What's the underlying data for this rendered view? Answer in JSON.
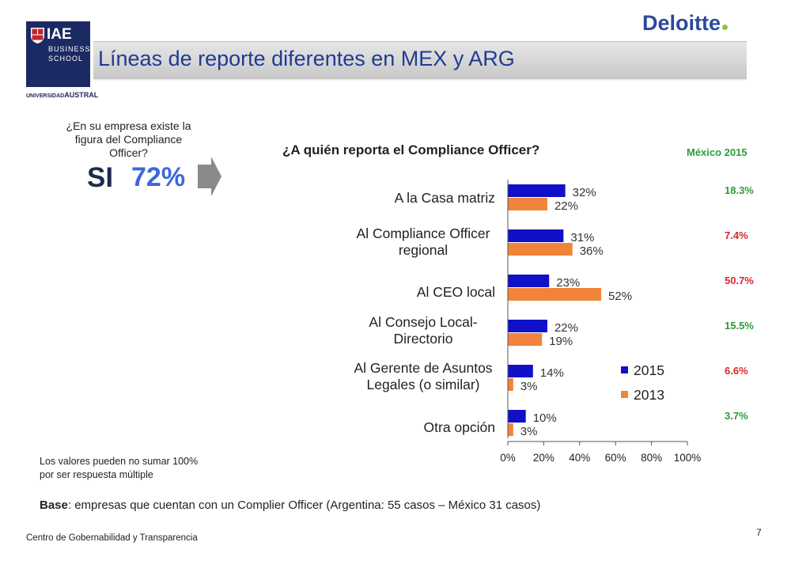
{
  "logo": {
    "name": "IAE",
    "line1": "BUSINESS",
    "line2": "SCHOOL",
    "university_prefix": "UNIVERSIDAD",
    "university_name": "AUSTRAL"
  },
  "brand": {
    "name": "Deloitte",
    "accent": "#8cc63e"
  },
  "title": "Líneas de reporte diferentes en MEX y ARG",
  "question_left": "¿En su empresa existe la figura del Compliance Officer?",
  "si_label": "SI",
  "si_value": "72%",
  "mexico_header": "México 2015",
  "colors": {
    "s2015": "#1010c8",
    "s2013": "#f0843a",
    "mex_green": "#2e9b3a",
    "mex_red": "#d9262e"
  },
  "chart_data": {
    "type": "bar",
    "orientation": "horizontal",
    "title": "¿A quién reporta el Compliance Officer?",
    "categories": [
      [
        "A la Casa matriz"
      ],
      [
        "Al Compliance Officer",
        "regional"
      ],
      [
        "Al CEO local"
      ],
      [
        "Al Consejo Local-",
        "Directorio"
      ],
      [
        "Al Gerente de Asuntos",
        "Legales (o similar)"
      ],
      [
        "Otra opción"
      ]
    ],
    "series": [
      {
        "name": "2015",
        "values": [
          32,
          31,
          23,
          22,
          14,
          10
        ],
        "labels": [
          "32%",
          "31%",
          "23%",
          "22%",
          "14%",
          "10%"
        ]
      },
      {
        "name": "2013",
        "values": [
          22,
          36,
          52,
          19,
          3,
          3
        ],
        "labels": [
          "22%",
          "36%",
          "52%",
          "19%",
          "3%",
          "3%"
        ]
      }
    ],
    "xlim": [
      0,
      100
    ],
    "xticks": [
      "0%",
      "20%",
      "40%",
      "60%",
      "80%",
      "100%"
    ],
    "legend": "inside-right",
    "mexico_2015": [
      {
        "value": "18.3%",
        "color": "green"
      },
      {
        "value": "7.4%",
        "color": "red"
      },
      {
        "value": "50.7%",
        "color": "red"
      },
      {
        "value": "15.5%",
        "color": "green"
      },
      {
        "value": "6.6%",
        "color": "red"
      },
      {
        "value": "3.7%",
        "color": "green"
      }
    ]
  },
  "note": [
    "Los valores pueden no sumar 100%",
    "por ser respuesta múltiple"
  ],
  "base": {
    "label": "Base",
    "text": ": empresas que cuentan con un Complier Officer (Argentina: 55 casos – México 31 casos)"
  },
  "footer": "Centro de Gobernabilidad y Transparencia",
  "page_number": "7"
}
